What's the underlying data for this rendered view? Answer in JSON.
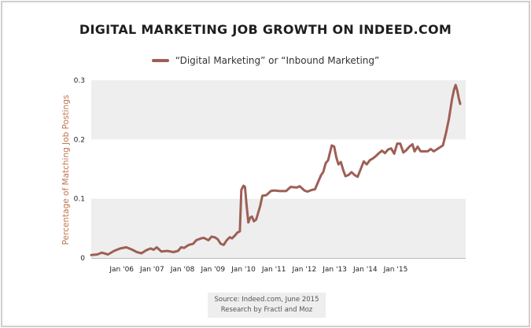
{
  "chart_data": {
    "type": "line",
    "title": "DIGITAL MARKETING JOB GROWTH ON INDEED.COM",
    "ylabel": "Percentage of Matching Job Postings",
    "xlabel": "",
    "ylim": [
      0,
      0.3
    ],
    "yticks": [
      "0",
      "0.1",
      "0.2",
      "0.3"
    ],
    "xticks": [
      "Jan '06",
      "Jan '07",
      "Jan '08",
      "Jan '09",
      "Jan '10",
      "Jan '11",
      "Jan '12",
      "Jan '13",
      "Jan '14",
      "Jan '15"
    ],
    "legend_position": "top",
    "grid": "alternating horizontal bands",
    "series": [
      {
        "name": "“Digital Marketing” or “Inbound Marketing”",
        "color": "#9e5f55",
        "points": [
          [
            2005.0,
            0.005
          ],
          [
            2005.2,
            0.006
          ],
          [
            2005.35,
            0.009
          ],
          [
            2005.55,
            0.006
          ],
          [
            2005.75,
            0.012
          ],
          [
            2005.95,
            0.016
          ],
          [
            2006.15,
            0.018
          ],
          [
            2006.35,
            0.014
          ],
          [
            2006.5,
            0.01
          ],
          [
            2006.65,
            0.008
          ],
          [
            2006.8,
            0.013
          ],
          [
            2006.95,
            0.016
          ],
          [
            2007.05,
            0.014
          ],
          [
            2007.15,
            0.018
          ],
          [
            2007.3,
            0.011
          ],
          [
            2007.5,
            0.012
          ],
          [
            2007.7,
            0.01
          ],
          [
            2007.85,
            0.012
          ],
          [
            2007.95,
            0.018
          ],
          [
            2008.05,
            0.017
          ],
          [
            2008.2,
            0.022
          ],
          [
            2008.35,
            0.024
          ],
          [
            2008.45,
            0.03
          ],
          [
            2008.6,
            0.033
          ],
          [
            2008.7,
            0.034
          ],
          [
            2008.85,
            0.03
          ],
          [
            2008.95,
            0.036
          ],
          [
            2009.05,
            0.035
          ],
          [
            2009.15,
            0.032
          ],
          [
            2009.25,
            0.024
          ],
          [
            2009.35,
            0.022
          ],
          [
            2009.45,
            0.03
          ],
          [
            2009.55,
            0.035
          ],
          [
            2009.62,
            0.033
          ],
          [
            2009.72,
            0.038
          ],
          [
            2009.8,
            0.043
          ],
          [
            2009.88,
            0.045
          ],
          [
            2009.93,
            0.115
          ],
          [
            2010.0,
            0.122
          ],
          [
            2010.05,
            0.12
          ],
          [
            2010.1,
            0.09
          ],
          [
            2010.16,
            0.06
          ],
          [
            2010.22,
            0.068
          ],
          [
            2010.28,
            0.07
          ],
          [
            2010.34,
            0.062
          ],
          [
            2010.42,
            0.065
          ],
          [
            2010.55,
            0.088
          ],
          [
            2010.62,
            0.105
          ],
          [
            2010.75,
            0.106
          ],
          [
            2010.9,
            0.113
          ],
          [
            2011.0,
            0.114
          ],
          [
            2011.2,
            0.113
          ],
          [
            2011.4,
            0.113
          ],
          [
            2011.55,
            0.12
          ],
          [
            2011.75,
            0.119
          ],
          [
            2011.85,
            0.121
          ],
          [
            2012.0,
            0.114
          ],
          [
            2012.1,
            0.112
          ],
          [
            2012.25,
            0.115
          ],
          [
            2012.35,
            0.116
          ],
          [
            2012.55,
            0.14
          ],
          [
            2012.62,
            0.145
          ],
          [
            2012.7,
            0.16
          ],
          [
            2012.78,
            0.165
          ],
          [
            2012.9,
            0.19
          ],
          [
            2012.98,
            0.188
          ],
          [
            2013.05,
            0.17
          ],
          [
            2013.12,
            0.158
          ],
          [
            2013.2,
            0.162
          ],
          [
            2013.28,
            0.148
          ],
          [
            2013.35,
            0.138
          ],
          [
            2013.45,
            0.14
          ],
          [
            2013.55,
            0.145
          ],
          [
            2013.65,
            0.14
          ],
          [
            2013.75,
            0.137
          ],
          [
            2013.85,
            0.15
          ],
          [
            2013.95,
            0.163
          ],
          [
            2014.05,
            0.158
          ],
          [
            2014.15,
            0.165
          ],
          [
            2014.25,
            0.168
          ],
          [
            2014.35,
            0.172
          ],
          [
            2014.45,
            0.177
          ],
          [
            2014.55,
            0.181
          ],
          [
            2014.65,
            0.177
          ],
          [
            2014.75,
            0.183
          ],
          [
            2014.85,
            0.185
          ],
          [
            2014.95,
            0.176
          ],
          [
            2015.05,
            0.193
          ],
          [
            2015.15,
            0.193
          ],
          [
            2015.25,
            0.178
          ],
          [
            2015.35,
            0.182
          ],
          [
            2015.45,
            0.188
          ],
          [
            2015.55,
            0.192
          ],
          [
            2015.62,
            0.18
          ],
          [
            2015.72,
            0.188
          ],
          [
            2015.82,
            0.18
          ],
          [
            2015.95,
            0.18
          ],
          [
            2016.05,
            0.18
          ],
          [
            2016.15,
            0.184
          ],
          [
            2016.25,
            0.18
          ],
          [
            2016.4,
            0.185
          ],
          [
            2016.55,
            0.19
          ],
          [
            2016.65,
            0.21
          ],
          [
            2016.75,
            0.235
          ],
          [
            2016.85,
            0.268
          ],
          [
            2016.92,
            0.285
          ],
          [
            2016.97,
            0.292
          ],
          [
            2017.02,
            0.283
          ],
          [
            2017.07,
            0.27
          ],
          [
            2017.12,
            0.26
          ]
        ]
      }
    ]
  },
  "legend": {
    "label": "“Digital Marketing” or “Inbound Marketing”",
    "color": "#9e5f55"
  },
  "source": {
    "line1": "Source: Indeed.com, June 2015",
    "line2": "Research by Fractl and Moz"
  },
  "colors": {
    "band": "#eeeeee",
    "ylabel": "#c0724e",
    "line": "#9e5f55"
  }
}
